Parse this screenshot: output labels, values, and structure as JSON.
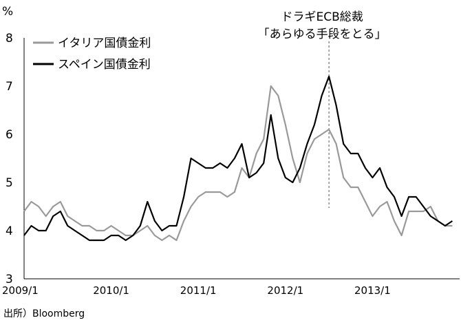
{
  "chart_data": {
    "type": "line",
    "title": "",
    "xlabel": "",
    "ylabel": "%",
    "ylim": [
      3,
      8
    ],
    "yticks": [
      "3",
      "4",
      "5",
      "6",
      "7",
      "8"
    ],
    "xlim": [
      "2009-01",
      "2014-01"
    ],
    "xticks": [
      "2009/1",
      "2010/1",
      "2011/1",
      "2012/1",
      "2013/1"
    ],
    "legend_position": "top-left",
    "grid": false,
    "annotation": {
      "line1": "ドラギECB総裁",
      "line2": "「あらゆる手段をとる」",
      "x": "2012-07"
    },
    "series": [
      {
        "name": "イタリア国債金利",
        "color": "#999999",
        "x": [
          "2009-01",
          "2009-02",
          "2009-03",
          "2009-04",
          "2009-05",
          "2009-06",
          "2009-07",
          "2009-08",
          "2009-09",
          "2009-10",
          "2009-11",
          "2009-12",
          "2010-01",
          "2010-02",
          "2010-03",
          "2010-04",
          "2010-05",
          "2010-06",
          "2010-07",
          "2010-08",
          "2010-09",
          "2010-10",
          "2010-11",
          "2010-12",
          "2011-01",
          "2011-02",
          "2011-03",
          "2011-04",
          "2011-05",
          "2011-06",
          "2011-07",
          "2011-08",
          "2011-09",
          "2011-10",
          "2011-11",
          "2011-12",
          "2012-01",
          "2012-02",
          "2012-03",
          "2012-04",
          "2012-05",
          "2012-06",
          "2012-07",
          "2012-08",
          "2012-09",
          "2012-10",
          "2012-11",
          "2012-12",
          "2013-01",
          "2013-02",
          "2013-03",
          "2013-04",
          "2013-05",
          "2013-06",
          "2013-07",
          "2013-08",
          "2013-09",
          "2013-10",
          "2013-11",
          "2013-12"
        ],
        "values": [
          4.4,
          4.6,
          4.5,
          4.3,
          4.5,
          4.6,
          4.3,
          4.2,
          4.1,
          4.1,
          4.0,
          4.0,
          4.1,
          4.0,
          3.9,
          3.9,
          4.0,
          4.1,
          3.9,
          3.8,
          3.9,
          3.8,
          4.2,
          4.5,
          4.7,
          4.8,
          4.8,
          4.8,
          4.7,
          4.8,
          5.3,
          5.1,
          5.6,
          5.9,
          7.0,
          6.8,
          6.2,
          5.5,
          5.0,
          5.6,
          5.9,
          6.0,
          6.1,
          5.8,
          5.1,
          4.9,
          4.9,
          4.6,
          4.3,
          4.5,
          4.6,
          4.2,
          3.9,
          4.4,
          4.4,
          4.4,
          4.5,
          4.2,
          4.1,
          4.1
        ]
      },
      {
        "name": "スペイン国債金利",
        "color": "#000000",
        "x": [
          "2009-01",
          "2009-02",
          "2009-03",
          "2009-04",
          "2009-05",
          "2009-06",
          "2009-07",
          "2009-08",
          "2009-09",
          "2009-10",
          "2009-11",
          "2009-12",
          "2010-01",
          "2010-02",
          "2010-03",
          "2010-04",
          "2010-05",
          "2010-06",
          "2010-07",
          "2010-08",
          "2010-09",
          "2010-10",
          "2010-11",
          "2010-12",
          "2011-01",
          "2011-02",
          "2011-03",
          "2011-04",
          "2011-05",
          "2011-06",
          "2011-07",
          "2011-08",
          "2011-09",
          "2011-10",
          "2011-11",
          "2011-12",
          "2012-01",
          "2012-02",
          "2012-03",
          "2012-04",
          "2012-05",
          "2012-06",
          "2012-07",
          "2012-08",
          "2012-09",
          "2012-10",
          "2012-11",
          "2012-12",
          "2013-01",
          "2013-02",
          "2013-03",
          "2013-04",
          "2013-05",
          "2013-06",
          "2013-07",
          "2013-08",
          "2013-09",
          "2013-10",
          "2013-11",
          "2013-12"
        ],
        "values": [
          3.9,
          4.1,
          4.0,
          4.0,
          4.3,
          4.4,
          4.1,
          4.0,
          3.9,
          3.8,
          3.8,
          3.8,
          3.9,
          3.9,
          3.8,
          3.9,
          4.1,
          4.6,
          4.2,
          4.0,
          4.1,
          4.1,
          4.7,
          5.5,
          5.4,
          5.3,
          5.3,
          5.4,
          5.3,
          5.5,
          5.8,
          5.1,
          5.2,
          5.4,
          6.4,
          5.5,
          5.1,
          5.0,
          5.3,
          5.8,
          6.2,
          6.8,
          7.2,
          6.6,
          5.8,
          5.6,
          5.6,
          5.3,
          5.1,
          5.3,
          4.9,
          4.7,
          4.3,
          4.7,
          4.7,
          4.5,
          4.3,
          4.2,
          4.1,
          4.2
        ]
      }
    ]
  },
  "footer": {
    "source": "出所）Bloomberg"
  }
}
